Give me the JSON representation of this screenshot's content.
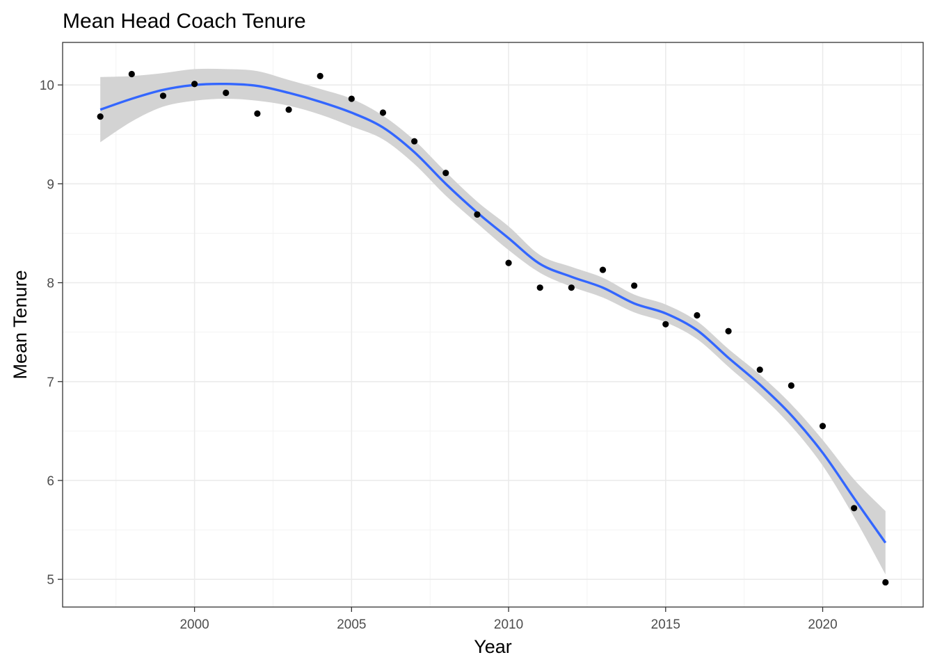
{
  "chart_data": {
    "type": "scatter",
    "title": "Mean Head Coach Tenure",
    "xlabel": "Year",
    "ylabel": "Mean Tenure",
    "xlim": [
      1995.8,
      2023.2
    ],
    "ylim": [
      4.72,
      10.43
    ],
    "x_ticks": [
      2000,
      2005,
      2010,
      2015,
      2020
    ],
    "x_tick_labels": [
      "2000",
      "2005",
      "2010",
      "2015",
      "2020"
    ],
    "y_ticks": [
      5,
      6,
      7,
      8,
      9,
      10
    ],
    "y_tick_labels": [
      "5",
      "6",
      "7",
      "8",
      "9",
      "10"
    ],
    "grid": true,
    "legend": "none",
    "series": [
      {
        "x": [
          1997,
          1998,
          1999,
          2000,
          2001,
          2002,
          2003,
          2004,
          2005,
          2006,
          2007,
          2008,
          2009,
          2010,
          2011,
          2012,
          2013,
          2014,
          2015,
          2016,
          2017,
          2018,
          2019,
          2020,
          2021,
          2022
        ],
        "y": [
          9.68,
          10.11,
          9.89,
          10.01,
          9.92,
          9.71,
          9.75,
          10.09,
          9.86,
          9.72,
          9.43,
          9.11,
          8.69,
          8.2,
          7.95,
          7.95,
          8.13,
          7.97,
          7.58,
          7.67,
          7.51,
          7.12,
          6.96,
          6.55,
          5.72,
          4.97
        ]
      }
    ],
    "smooth": {
      "x": [
        1997,
        1998,
        1999,
        2000,
        2001,
        2002,
        2003,
        2004,
        2005,
        2006,
        2007,
        2008,
        2009,
        2010,
        2011,
        2012,
        2013,
        2014,
        2015,
        2016,
        2017,
        2018,
        2019,
        2020,
        2021,
        2022
      ],
      "y": [
        9.75,
        9.86,
        9.95,
        10.0,
        10.01,
        9.99,
        9.92,
        9.83,
        9.72,
        9.57,
        9.32,
        9.0,
        8.71,
        8.45,
        8.19,
        8.06,
        7.95,
        7.79,
        7.69,
        7.52,
        7.24,
        6.97,
        6.66,
        6.28,
        5.82,
        5.37
      ],
      "lower": [
        9.42,
        9.63,
        9.78,
        9.84,
        9.86,
        9.84,
        9.79,
        9.7,
        9.58,
        9.45,
        9.2,
        8.88,
        8.6,
        8.33,
        8.1,
        7.96,
        7.85,
        7.7,
        7.6,
        7.43,
        7.15,
        6.87,
        6.55,
        6.15,
        5.63,
        5.05
      ],
      "upper": [
        10.08,
        10.09,
        10.12,
        10.16,
        10.16,
        10.14,
        10.05,
        9.96,
        9.86,
        9.69,
        9.44,
        9.12,
        8.82,
        8.57,
        8.28,
        8.16,
        8.05,
        7.88,
        7.78,
        7.61,
        7.33,
        7.07,
        6.77,
        6.41,
        6.01,
        5.69
      ]
    },
    "colors": {
      "line": "#3366ff",
      "band": "#d3d3d3",
      "points": "#000000",
      "grid_major": "#ebebeb",
      "grid_minor": "#f3f3f3",
      "panel_border": "#333333"
    }
  }
}
